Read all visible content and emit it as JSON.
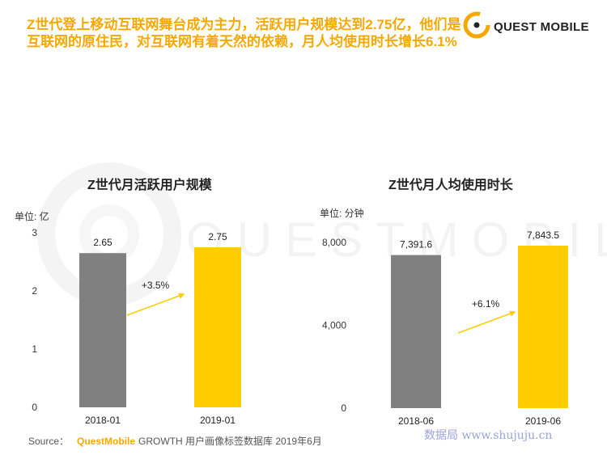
{
  "headline": "Z世代登上移动互联网舞台成为主力，活跃用户规模达到2.75亿，他们是互联网的原住民，对互联网有着天然的依赖，月人均使用时长增长6.1%",
  "brand": {
    "logo_text": "QUEST MOBILE",
    "watermark_text": "QUESTMOBILE",
    "accent_color": "#f5a800"
  },
  "chart_data": [
    {
      "type": "bar",
      "title": "Z世代月活跃用户规模",
      "unit": "单位: 亿",
      "categories": [
        "2018-01",
        "2019-01"
      ],
      "values": [
        2.65,
        2.75
      ],
      "value_labels": [
        "2.65",
        "2.75"
      ],
      "yticks": [
        0,
        1,
        2,
        3
      ],
      "ytick_labels": [
        "0",
        "1",
        "2",
        "3"
      ],
      "ylim": [
        0,
        3
      ],
      "colors": [
        "#808080",
        "#ffcc00"
      ],
      "growth_label": "+3.5%",
      "grid": false
    },
    {
      "type": "bar",
      "title": "Z世代月人均使用时长",
      "unit": "单位: 分钟",
      "categories": [
        "2018-06",
        "2019-06"
      ],
      "values": [
        7391.6,
        7843.5
      ],
      "value_labels": [
        "7,391.6",
        "7,843.5"
      ],
      "yticks": [
        0,
        4000,
        8000
      ],
      "ytick_labels": [
        "0",
        "4,000",
        "8,000"
      ],
      "ylim": [
        0,
        8000
      ],
      "colors": [
        "#808080",
        "#ffcc00"
      ],
      "growth_label": "+6.1%",
      "grid": false
    }
  ],
  "source": {
    "label": "Source：",
    "brand": "QuestMobile",
    "text": "GROWTH 用户画像标签数据库 2019年6月"
  },
  "site_watermark": "数据局 www.shujuju.cn"
}
